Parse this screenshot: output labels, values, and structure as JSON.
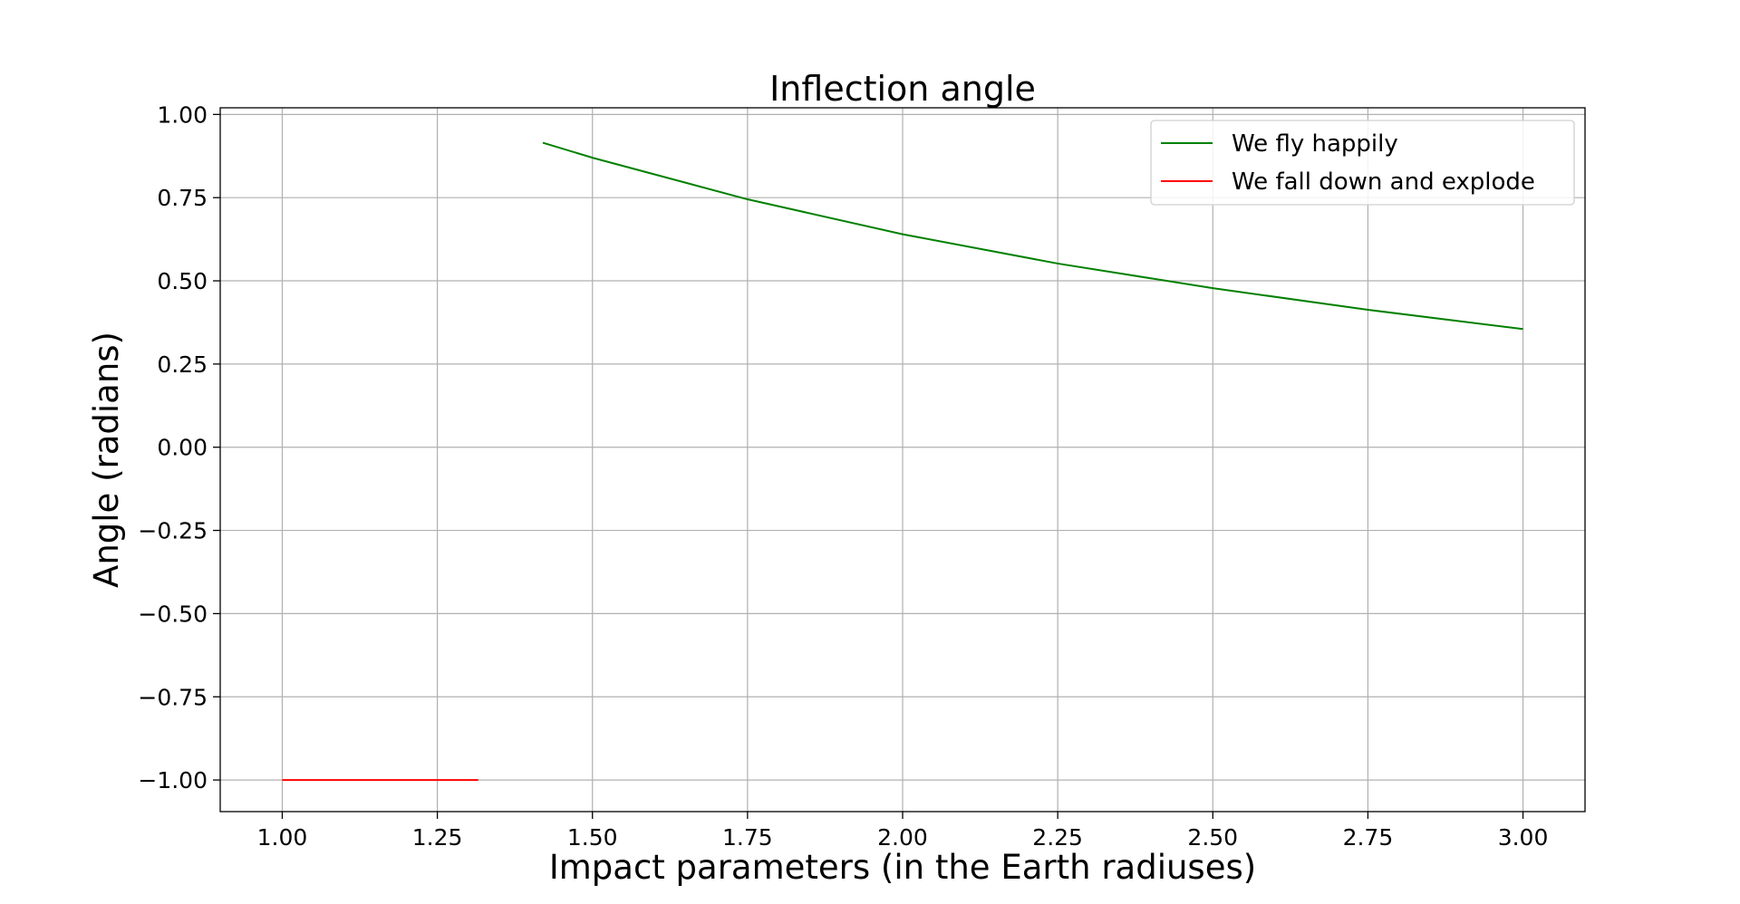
{
  "chart_data": {
    "type": "line",
    "title": "Inflection angle",
    "xlabel": "Impact parameters (in the Earth radiuses)",
    "ylabel": "Angle (radians)",
    "xlim": [
      0.9,
      3.1
    ],
    "ylim": [
      -1.095,
      1.02
    ],
    "xticks": [
      1.0,
      1.25,
      1.5,
      1.75,
      2.0,
      2.25,
      2.5,
      2.75,
      3.0
    ],
    "xtick_labels": [
      "1.00",
      "1.25",
      "1.50",
      "1.75",
      "2.00",
      "2.25",
      "2.50",
      "2.75",
      "3.00"
    ],
    "yticks": [
      -1.0,
      -0.75,
      -0.5,
      -0.25,
      0.0,
      0.25,
      0.5,
      0.75,
      1.0
    ],
    "ytick_labels": [
      "−1.00",
      "−0.75",
      "−0.50",
      "−0.25",
      "0.00",
      "0.25",
      "0.50",
      "0.75",
      "1.00"
    ],
    "grid": true,
    "legend_position": "top-right",
    "series": [
      {
        "name": "We fly happily",
        "color": "#008000",
        "x": [
          1.42,
          1.5,
          1.75,
          2.0,
          2.25,
          2.5,
          2.75,
          3.0
        ],
        "y": [
          0.915,
          0.87,
          0.745,
          0.64,
          0.552,
          0.478,
          0.413,
          0.355
        ]
      },
      {
        "name": "We fall down and explode",
        "color": "#ff0000",
        "x": [
          1.0,
          1.316
        ],
        "y": [
          -1.0,
          -1.0
        ]
      }
    ]
  }
}
